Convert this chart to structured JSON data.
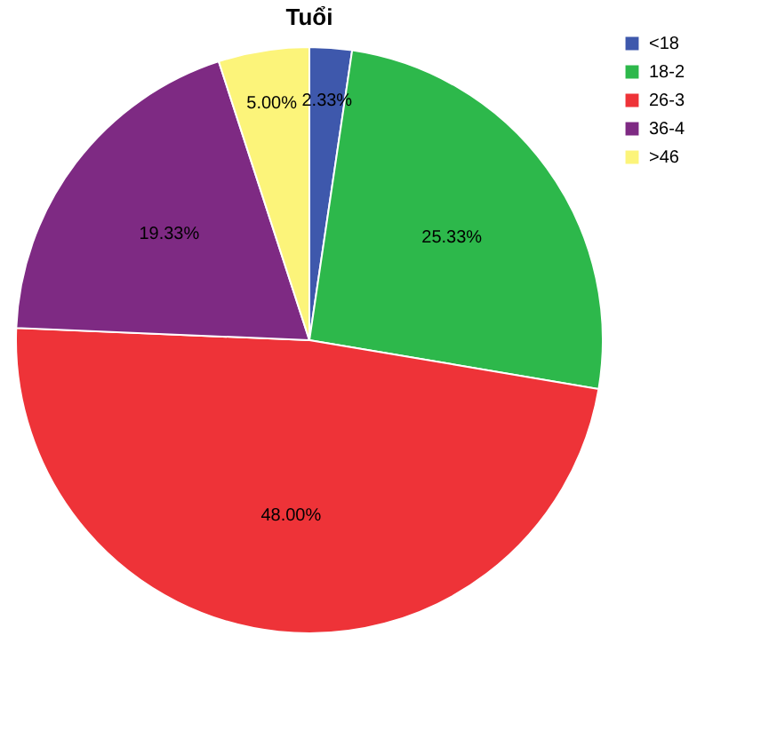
{
  "chart_data": {
    "type": "pie",
    "title": "Tuổi",
    "categories": [
      "<18",
      "18-2",
      "26-3",
      "36-4",
      ">46"
    ],
    "values": [
      2.33,
      25.33,
      48.0,
      19.33,
      5.0
    ],
    "colors": [
      "#3e58ac",
      "#2db84b",
      "#ee3338",
      "#7e2a83",
      "#fcf47a"
    ],
    "value_labels": [
      "2.33%",
      "25.33%",
      "48.00%",
      "19.33%",
      "5.00%"
    ],
    "legend": "top right"
  }
}
